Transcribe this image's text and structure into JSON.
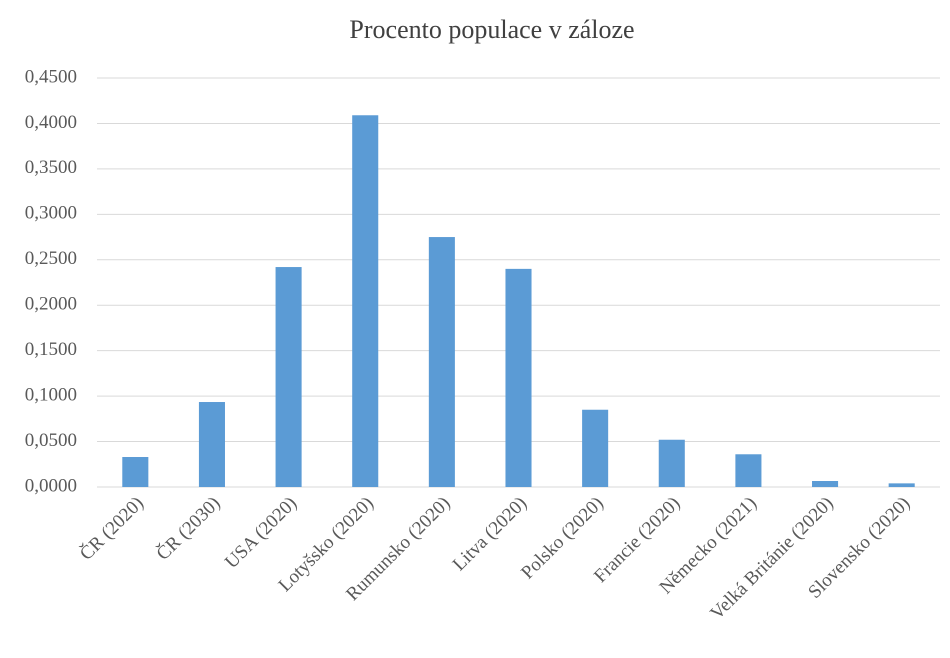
{
  "chart_data": {
    "type": "bar",
    "title": "Procento populace v záloze",
    "categories": [
      "ČR (2020)",
      "ČR (2030)",
      "USA (2020)",
      "Lotyšsko (2020)",
      "Rumunsko (2020)",
      "Litva (2020)",
      "Polsko (2020)",
      "Francie (2020)",
      "Německo (2021)",
      "Velká Británie (2020)",
      "Slovensko (2020)"
    ],
    "values": [
      0.033,
      0.0935,
      0.242,
      0.409,
      0.275,
      0.24,
      0.085,
      0.052,
      0.036,
      0.0066,
      0.004
    ],
    "color": "#5b9bd5",
    "ylim": [
      0,
      0.45
    ],
    "yticks": [
      {
        "value": 0,
        "label": "0,0000"
      },
      {
        "value": 0.05,
        "label": "0,0500"
      },
      {
        "value": 0.1,
        "label": "0,1000"
      },
      {
        "value": 0.15,
        "label": "0,1500"
      },
      {
        "value": 0.2,
        "label": "0,2000"
      },
      {
        "value": 0.25,
        "label": "0,2500"
      },
      {
        "value": 0.3,
        "label": "0,3000"
      },
      {
        "value": 0.35,
        "label": "0,3500"
      },
      {
        "value": 0.4,
        "label": "0,4000"
      },
      {
        "value": 0.45,
        "label": "0,4500"
      }
    ],
    "grid": true
  }
}
